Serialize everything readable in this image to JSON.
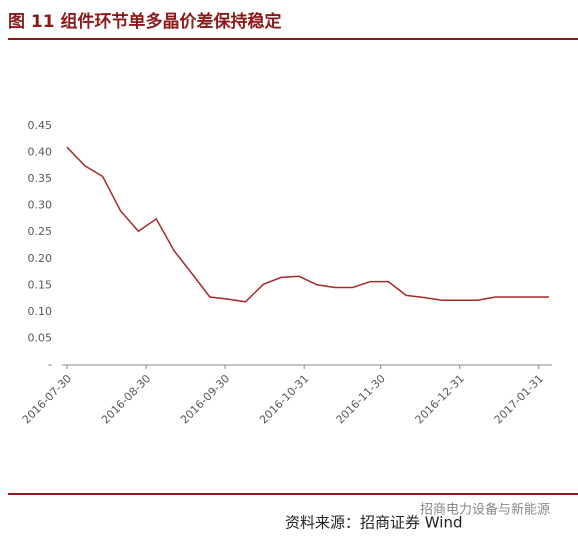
{
  "chart_data": {
    "type": "line",
    "title": "图 11  组件环节单多晶价差保持稳定",
    "source": "资料来源：招商证券 Wind",
    "watermark": "招商电力设备与新能源",
    "x": [
      "2016-07-30",
      "2016-08-06",
      "2016-08-13",
      "2016-08-20",
      "2016-08-27",
      "2016-09-03",
      "2016-09-10",
      "2016-09-17",
      "2016-09-24",
      "2016-10-01",
      "2016-10-08",
      "2016-10-15",
      "2016-10-22",
      "2016-10-29",
      "2016-11-05",
      "2016-11-12",
      "2016-11-19",
      "2016-11-26",
      "2016-12-03",
      "2016-12-10",
      "2016-12-17",
      "2016-12-24",
      "2016-12-31",
      "2017-01-07",
      "2017-01-14",
      "2017-01-21",
      "2017-01-28",
      "2017-02-04"
    ],
    "series": [
      {
        "color": "#a52a2a",
        "values": [
          0.41,
          0.375,
          0.355,
          0.29,
          0.252,
          0.275,
          0.215,
          0.172,
          0.128,
          0.124,
          0.119,
          0.152,
          0.165,
          0.167,
          0.151,
          0.146,
          0.146,
          0.157,
          0.157,
          0.131,
          0.127,
          0.122,
          0.122,
          0.122,
          0.128,
          0.128,
          0.128,
          0.128
        ]
      }
    ],
    "xlim": [
      "2016-07-30",
      "2017-02-04"
    ],
    "xticks": [
      "2016-07-30",
      "2016-08-30",
      "2016-09-30",
      "2016-10-31",
      "2016-11-30",
      "2016-12-31",
      "2017-01-31"
    ],
    "ylim": [
      0,
      0.45
    ],
    "yticks": [
      {
        "value": 0,
        "label": "-"
      },
      0.05,
      {
        "value": 0.1,
        "label": "0.10"
      },
      0.15,
      {
        "value": 0.2,
        "label": "0.20"
      },
      0.25,
      {
        "value": 0.3,
        "label": "0.30"
      },
      0.35,
      {
        "value": 0.4,
        "label": "0.40"
      },
      0.45
    ]
  }
}
